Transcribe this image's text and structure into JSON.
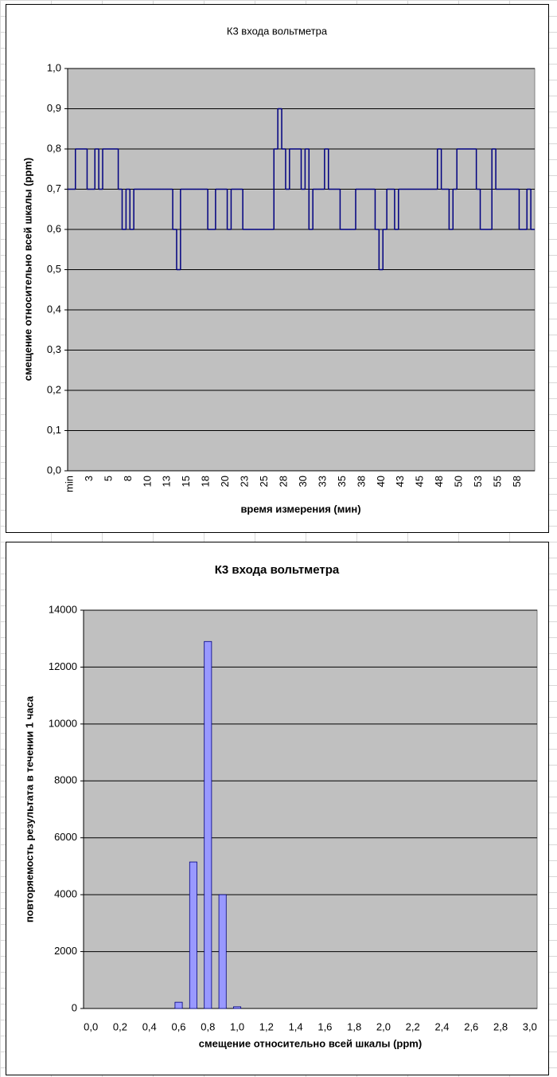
{
  "chart_data": [
    {
      "type": "line",
      "title": "К3 входа вольтметра",
      "x_label": "время измерения (мин)",
      "y_label": "смещение относительно всей шкалы (ppm)",
      "categories": [
        "min",
        null,
        null,
        null,
        null,
        "3",
        null,
        null,
        null,
        null,
        "5",
        null,
        null,
        null,
        null,
        "8",
        null,
        null,
        null,
        null,
        "10",
        null,
        null,
        null,
        null,
        "13",
        null,
        null,
        null,
        null,
        "15",
        null,
        null,
        null,
        null,
        "18",
        null,
        null,
        null,
        null,
        "20",
        null,
        null,
        null,
        null,
        "23",
        null,
        null,
        null,
        null,
        "25",
        null,
        null,
        null,
        null,
        "28",
        null,
        null,
        null,
        null,
        "30",
        null,
        null,
        null,
        null,
        "33",
        null,
        null,
        null,
        null,
        "35",
        null,
        null,
        null,
        null,
        "38",
        null,
        null,
        null,
        null,
        "40",
        null,
        null,
        null,
        null,
        "43",
        null,
        null,
        null,
        null,
        "45",
        null,
        null,
        null,
        null,
        "48",
        null,
        null,
        null,
        null,
        "50",
        null,
        null,
        null,
        null,
        "53",
        null,
        null,
        null,
        null,
        "55",
        null,
        null,
        null,
        null,
        "58",
        null,
        null,
        null,
        null
      ],
      "values": [
        0.7,
        0.7,
        0.8,
        0.8,
        0.8,
        0.7,
        0.7,
        0.8,
        0.7,
        0.8,
        0.8,
        0.8,
        0.8,
        0.7,
        0.6,
        0.7,
        0.6,
        0.7,
        0.7,
        0.7,
        0.7,
        0.7,
        0.7,
        0.7,
        0.7,
        0.7,
        0.7,
        0.6,
        0.5,
        0.7,
        0.7,
        0.7,
        0.7,
        0.7,
        0.7,
        0.7,
        0.6,
        0.6,
        0.7,
        0.7,
        0.7,
        0.6,
        0.7,
        0.7,
        0.7,
        0.6,
        0.6,
        0.6,
        0.6,
        0.6,
        0.6,
        0.6,
        0.6,
        0.8,
        0.9,
        0.8,
        0.7,
        0.8,
        0.8,
        0.8,
        0.7,
        0.8,
        0.6,
        0.7,
        0.7,
        0.7,
        0.8,
        0.7,
        0.7,
        0.7,
        0.6,
        0.6,
        0.6,
        0.6,
        0.7,
        0.7,
        0.7,
        0.7,
        0.7,
        0.6,
        0.5,
        0.6,
        0.7,
        0.7,
        0.6,
        0.7,
        0.7,
        0.7,
        0.7,
        0.7,
        0.7,
        0.7,
        0.7,
        0.7,
        0.7,
        0.8,
        0.7,
        0.7,
        0.6,
        0.7,
        0.8,
        0.8,
        0.8,
        0.8,
        0.8,
        0.7,
        0.6,
        0.6,
        0.6,
        0.8,
        0.7,
        0.7,
        0.7,
        0.7,
        0.7,
        0.7,
        0.6,
        0.6,
        0.7,
        0.6
      ],
      "color": "#000080",
      "plot_background": "#c0c0c0",
      "grid": true,
      "ylim": [
        0,
        1
      ],
      "yticks": [
        {
          "value": 0,
          "label": "0,0"
        },
        {
          "value": 0.1,
          "label": "0,1"
        },
        {
          "value": 0.2,
          "label": "0,2"
        },
        {
          "value": 0.3,
          "label": "0,3"
        },
        {
          "value": 0.4,
          "label": "0,4"
        },
        {
          "value": 0.5,
          "label": "0,5"
        },
        {
          "value": 0.6,
          "label": "0,6"
        },
        {
          "value": 0.7,
          "label": "0,7"
        },
        {
          "value": 0.8,
          "label": "0,8"
        },
        {
          "value": 0.9,
          "label": "0,9"
        },
        {
          "value": 1,
          "label": "1,0"
        }
      ]
    },
    {
      "type": "bar",
      "title": "К3 входа вольтметра",
      "x_label": "смещение относительно всей шкалы (ppm)",
      "y_label": "повторяемость результата в течении 1 часа",
      "categories": [
        "0,0",
        null,
        "0,2",
        null,
        "0,4",
        null,
        "0,6",
        null,
        "0,8",
        null,
        "1,0",
        null,
        "1,2",
        null,
        "1,4",
        null,
        "1,6",
        null,
        "1,8",
        null,
        "2,0",
        null,
        "2,2",
        null,
        "2,4",
        null,
        "2,6",
        null,
        "2,8",
        null,
        "3,0"
      ],
      "values": [
        0,
        0,
        0,
        0,
        0,
        0,
        220,
        5150,
        12900,
        4000,
        60,
        0,
        0,
        0,
        0,
        0,
        0,
        0,
        0,
        0,
        0,
        0,
        0,
        0,
        0,
        0,
        0,
        0,
        0,
        0,
        0
      ],
      "color": "#9999ff",
      "plot_background": "#c0c0c0",
      "grid": true,
      "ylim": [
        0,
        14000
      ],
      "yticks": [
        0,
        2000,
        4000,
        6000,
        8000,
        10000,
        12000,
        14000
      ]
    }
  ]
}
